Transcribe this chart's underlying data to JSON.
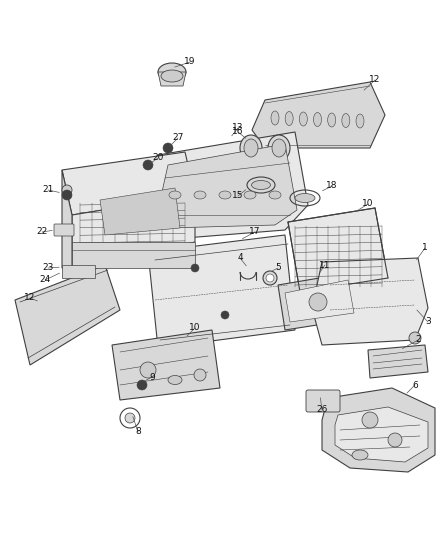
{
  "bg_color": "#ffffff",
  "fig_width": 4.38,
  "fig_height": 5.33,
  "dpi": 100,
  "ec": "#404040",
  "lw_main": 0.8,
  "label_fontsize": 6.5,
  "leader_lw": 0.5,
  "leader_color": "#555555",
  "parts_color": "#e8e8e8",
  "parts_dark": "#cccccc",
  "parts_mid": "#d8d8d8"
}
